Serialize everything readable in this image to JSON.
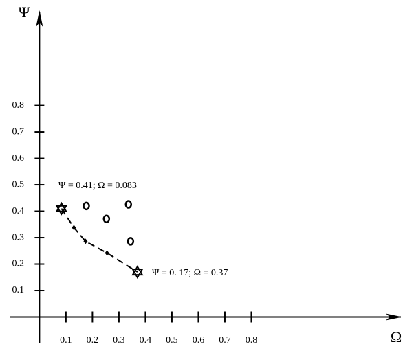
{
  "chart_data": {
    "type": "scatter",
    "x_label": "Ω",
    "y_label": "Ψ",
    "xlim": [
      -0.11,
      1.37
    ],
    "ylim": [
      -0.1,
      1.16
    ],
    "xticks": [
      0.1,
      0.2,
      0.3,
      0.4,
      0.5,
      0.6,
      0.7,
      0.8
    ],
    "yticks": [
      0.1,
      0.2,
      0.3,
      0.4,
      0.5,
      0.6,
      0.7,
      0.8
    ],
    "color": "#000000",
    "series": [
      {
        "marker": "star",
        "x": [
          0.083,
          0.37
        ],
        "values": [
          0.41,
          0.17
        ]
      },
      {
        "marker": "circle",
        "x": [
          0.177,
          0.253,
          0.336,
          0.344
        ],
        "values": [
          0.42,
          0.371,
          0.426,
          0.286
        ]
      },
      {
        "marker": "diamond",
        "x": [
          0.13,
          0.174,
          0.255
        ],
        "values": [
          0.338,
          0.286,
          0.242
        ]
      },
      {
        "marker": "none",
        "line": "dashed",
        "x": [
          0.083,
          0.13,
          0.174,
          0.255,
          0.37
        ],
        "values": [
          0.41,
          0.338,
          0.286,
          0.242,
          0.17
        ]
      }
    ],
    "annotations": [
      "Ψ = 0.41;  Ω = 0.083",
      "Ψ = 0. 17;  Ω = 0.37"
    ]
  }
}
